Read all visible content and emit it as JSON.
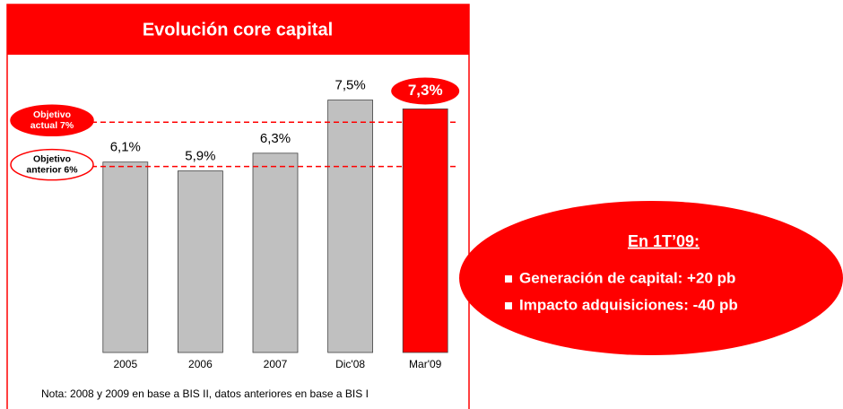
{
  "chart_data": {
    "type": "bar",
    "title": "Evolución core capital",
    "categories": [
      "2005",
      "2006",
      "2007",
      "Dic'08",
      "Mar'09"
    ],
    "values": [
      6.1,
      5.9,
      6.3,
      7.5,
      7.3
    ],
    "value_labels": [
      "6,1%",
      "5,9%",
      "6,3%",
      "7,5%",
      "7,3%"
    ],
    "colors": [
      "#c0c0c0",
      "#c0c0c0",
      "#c0c0c0",
      "#c0c0c0",
      "#ff0000"
    ],
    "ylim": [
      1.8,
      8.2
    ],
    "reference_lines": [
      {
        "value": 7,
        "label": [
          "Objetivo",
          "actual 7%"
        ]
      },
      {
        "value": 6,
        "label": [
          "Objetivo",
          "anterior 6%"
        ]
      }
    ],
    "note": "Nota: 2008 y 2009 en base a BIS II, datos anteriores en base a BIS I"
  },
  "callout": {
    "title": "En 1T’09:",
    "items": [
      "Generación de capital: +20 pb",
      "Impacto adquisiciones: -40 pb"
    ]
  }
}
